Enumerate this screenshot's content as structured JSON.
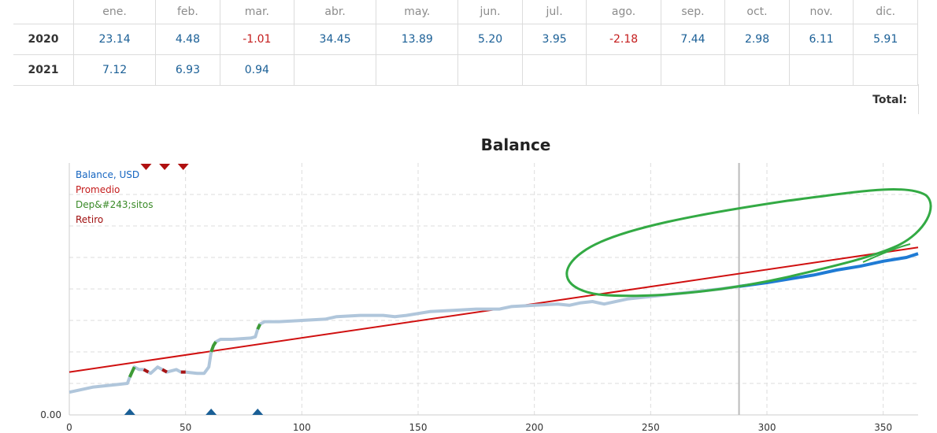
{
  "monthly_table": {
    "months": [
      "ene.",
      "feb.",
      "mar.",
      "abr.",
      "may.",
      "jun.",
      "jul.",
      "ago.",
      "sep.",
      "oct.",
      "nov.",
      "dic."
    ],
    "rows": [
      {
        "year": "2020",
        "values": [
          "23.14",
          "4.48",
          "-1.01",
          "34.45",
          "13.89",
          "5.20",
          "3.95",
          "-2.18",
          "7.44",
          "2.98",
          "6.11",
          "5.91"
        ]
      },
      {
        "year": "2021",
        "values": [
          "7.12",
          "6.93",
          "0.94",
          "",
          "",
          "",
          "",
          "",
          "",
          "",
          "",
          ""
        ]
      }
    ],
    "total_label": "Total:"
  },
  "chart_data": {
    "type": "line",
    "title": "Balance",
    "xlim": [
      0,
      365
    ],
    "x_ticks": [
      "0",
      "50",
      "100",
      "150",
      "200",
      "250",
      "300",
      "350"
    ],
    "y_tick_label": "0.00",
    "grid": true,
    "legend_position": "top-left",
    "legend": [
      {
        "label": "Balance, USD",
        "color": "#1565c0"
      },
      {
        "label": "Promedio",
        "color": "#c41c1c"
      },
      {
        "label": "Dep&#243;sitos",
        "color": "#3a8a28"
      },
      {
        "label": "Retiro",
        "color": "#a00f0f"
      }
    ],
    "colors": {
      "balance_history": "#b0c6db",
      "balance_recent": "#1f7bd4",
      "average": "#d01010",
      "deposit": "#3d9b35",
      "withdrawal": "#a81414",
      "annotation": "#33aa44",
      "marker_top": "#b01010",
      "marker_bottom": "#1a5f96"
    },
    "vertical_marker_x": 288,
    "balance": [
      [
        0,
        0.09
      ],
      [
        10,
        0.11
      ],
      [
        20,
        0.12
      ],
      [
        25,
        0.125
      ],
      [
        26,
        0.15
      ],
      [
        27,
        0.17
      ],
      [
        28,
        0.19
      ],
      [
        30,
        0.18
      ],
      [
        32,
        0.18
      ],
      [
        35,
        0.165
      ],
      [
        38,
        0.19
      ],
      [
        42,
        0.17
      ],
      [
        46,
        0.18
      ],
      [
        48,
        0.17
      ],
      [
        50,
        0.17
      ],
      [
        55,
        0.165
      ],
      [
        58,
        0.165
      ],
      [
        60,
        0.19
      ],
      [
        61,
        0.25
      ],
      [
        62,
        0.275
      ],
      [
        63,
        0.29
      ],
      [
        65,
        0.3
      ],
      [
        70,
        0.3
      ],
      [
        78,
        0.305
      ],
      [
        80,
        0.31
      ],
      [
        81,
        0.34
      ],
      [
        82,
        0.36
      ],
      [
        84,
        0.37
      ],
      [
        90,
        0.37
      ],
      [
        100,
        0.375
      ],
      [
        110,
        0.38
      ],
      [
        115,
        0.39
      ],
      [
        125,
        0.395
      ],
      [
        135,
        0.395
      ],
      [
        140,
        0.39
      ],
      [
        145,
        0.395
      ],
      [
        155,
        0.41
      ],
      [
        165,
        0.415
      ],
      [
        175,
        0.42
      ],
      [
        185,
        0.42
      ],
      [
        190,
        0.43
      ],
      [
        200,
        0.435
      ],
      [
        210,
        0.44
      ],
      [
        215,
        0.435
      ],
      [
        220,
        0.445
      ],
      [
        225,
        0.45
      ],
      [
        230,
        0.44
      ],
      [
        240,
        0.46
      ],
      [
        250,
        0.47
      ],
      [
        260,
        0.48
      ],
      [
        270,
        0.49
      ],
      [
        280,
        0.5
      ],
      [
        288,
        0.51
      ],
      [
        300,
        0.525
      ],
      [
        310,
        0.54
      ],
      [
        320,
        0.555
      ],
      [
        330,
        0.575
      ],
      [
        340,
        0.59
      ],
      [
        350,
        0.61
      ],
      [
        360,
        0.625
      ],
      [
        365,
        0.64
      ]
    ],
    "average_line": [
      [
        0,
        0.17
      ],
      [
        365,
        0.665
      ]
    ],
    "deposits_x": [
      26,
      61,
      81
    ],
    "withdrawals_x": [
      32,
      40,
      48
    ],
    "deposit_markers_x": [
      26,
      61,
      81
    ],
    "withdrawal_markers_x": [
      33,
      41,
      49
    ]
  }
}
